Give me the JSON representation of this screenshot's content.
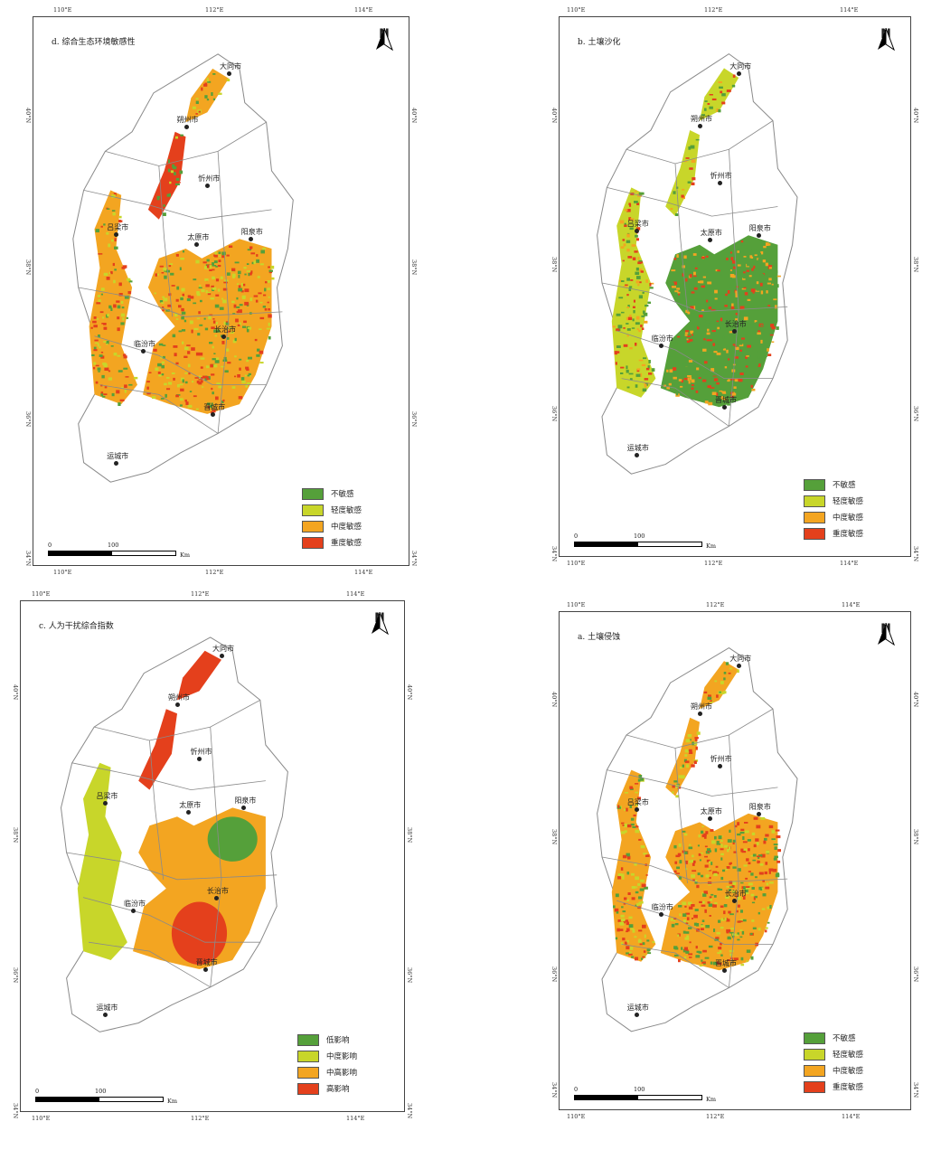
{
  "colors": {
    "green": "#55a03a",
    "yellowgreen": "#c8d62a",
    "orange": "#f3a521",
    "red": "#e4401c",
    "boundary": "#8a8a8a"
  },
  "panels": [
    {
      "id": "d",
      "title": "d. 综合生态环境敏感性",
      "top_ticks": [
        "110°E",
        "112°E",
        "114°E"
      ],
      "bottom_ticks": [
        "110°E",
        "112°E",
        "114°E"
      ],
      "left_ticks": [
        "40°N",
        "38°N",
        "36°N",
        "34°N"
      ],
      "right_ticks": [
        "40°N",
        "38°N",
        "36°N",
        "34°N"
      ],
      "legend": [
        "不敏感",
        "轻度敏感",
        "中度敏感",
        "重度敏感"
      ],
      "scale": {
        "zero": "0",
        "hundred": "100",
        "unit": "Km"
      },
      "north": "N",
      "cities": [
        "大同市",
        "朔州市",
        "忻州市",
        "吕梁市",
        "太原市",
        "阳泉市",
        "长治市",
        "临汾市",
        "晋城市",
        "运城市"
      ]
    },
    {
      "id": "b",
      "title": "b. 土壤沙化",
      "top_ticks": [
        "110°E",
        "112°E",
        "114°E"
      ],
      "bottom_ticks": [
        "110°E",
        "112°E",
        "114°E"
      ],
      "left_ticks": [
        "40°N",
        "38°N",
        "36°N",
        "34°N"
      ],
      "right_ticks": [
        "40°N",
        "38°N",
        "36°N",
        "34°N"
      ],
      "legend": [
        "不敏感",
        "轻度敏感",
        "中度敏感",
        "重度敏感"
      ],
      "scale": {
        "zero": "0",
        "hundred": "100",
        "unit": "Km"
      },
      "north": "N",
      "cities": [
        "大同市",
        "朔州市",
        "忻州市",
        "吕梁市",
        "太原市",
        "阳泉市",
        "长治市",
        "临汾市",
        "晋城市",
        "运城市"
      ]
    },
    {
      "id": "c",
      "title": "c. 人为干扰综合指数",
      "top_ticks": [
        "110°E",
        "112°E",
        "114°E"
      ],
      "bottom_ticks": [
        "110°E",
        "112°E",
        "114°E"
      ],
      "left_ticks": [
        "40°N",
        "38°N",
        "36°N",
        "34°N"
      ],
      "right_ticks": [
        "40°N",
        "38°N",
        "36°N",
        "34°N"
      ],
      "legend": [
        "低影响",
        "中度影响",
        "中高影响",
        "高影响"
      ],
      "scale": {
        "zero": "0",
        "hundred": "100",
        "unit": "Km"
      },
      "north": "N",
      "cities": [
        "大同市",
        "朔州市",
        "忻州市",
        "吕梁市",
        "太原市",
        "阳泉市",
        "长治市",
        "临汾市",
        "晋城市",
        "运城市"
      ]
    },
    {
      "id": "a",
      "title": "a. 土壤侵蚀",
      "top_ticks": [
        "110°E",
        "112°E",
        "114°E"
      ],
      "bottom_ticks": [
        "110°E",
        "112°E",
        "114°E"
      ],
      "left_ticks": [
        "40°N",
        "38°N",
        "36°N",
        "34°N"
      ],
      "right_ticks": [
        "40°N",
        "38°N",
        "36°N",
        "34°N"
      ],
      "legend": [
        "不敏感",
        "轻度敏感",
        "中度敏感",
        "重度敏感"
      ],
      "scale": {
        "zero": "0",
        "hundred": "100",
        "unit": "Km"
      },
      "north": "N",
      "cities": [
        "大同市",
        "朔州市",
        "忻州市",
        "吕梁市",
        "太原市",
        "阳泉市",
        "长治市",
        "临汾市",
        "晋城市",
        "运城市"
      ]
    }
  ]
}
